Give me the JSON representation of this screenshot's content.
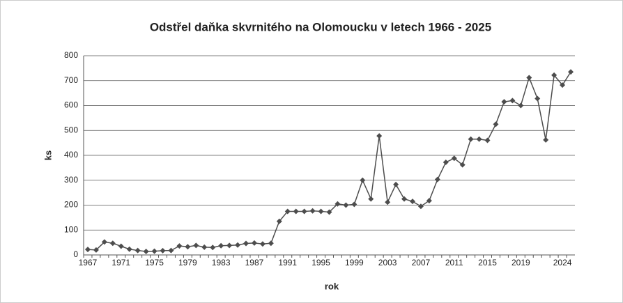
{
  "chart_data": {
    "type": "line",
    "title": "Odstřel daňka skvrnitého na Olomoucku v letech 1966 - 2025",
    "x_label": "rok",
    "y_label": "ks",
    "categories": [
      "1967",
      null,
      null,
      null,
      "1971",
      null,
      null,
      null,
      "1975",
      null,
      null,
      null,
      "1979",
      null,
      null,
      null,
      "1983",
      null,
      null,
      null,
      "1987",
      null,
      null,
      null,
      "1991",
      null,
      null,
      null,
      "1995",
      null,
      null,
      null,
      "1999",
      null,
      null,
      null,
      "2003",
      null,
      null,
      null,
      "2007",
      null,
      null,
      null,
      "2011",
      null,
      null,
      null,
      "2015",
      null,
      null,
      null,
      "2019",
      null,
      null,
      null,
      null,
      "2024",
      null
    ],
    "series": [
      {
        "name": "ks",
        "color": "#4d4d4d",
        "values": [
          22,
          20,
          52,
          47,
          35,
          23,
          18,
          14,
          15,
          17,
          18,
          36,
          33,
          38,
          31,
          30,
          37,
          38,
          40,
          46,
          48,
          44,
          47,
          135,
          175,
          175,
          175,
          177,
          175,
          172,
          205,
          200,
          203,
          300,
          225,
          478,
          212,
          283,
          225,
          215,
          195,
          218,
          303,
          372,
          388,
          362,
          465,
          465,
          460,
          525,
          615,
          620,
          600,
          712,
          628,
          462,
          722,
          682,
          735
        ]
      }
    ],
    "ylim": [
      0,
      800
    ],
    "yticks": [
      0,
      100,
      200,
      300,
      400,
      500,
      600,
      700,
      800
    ],
    "grid": true
  }
}
